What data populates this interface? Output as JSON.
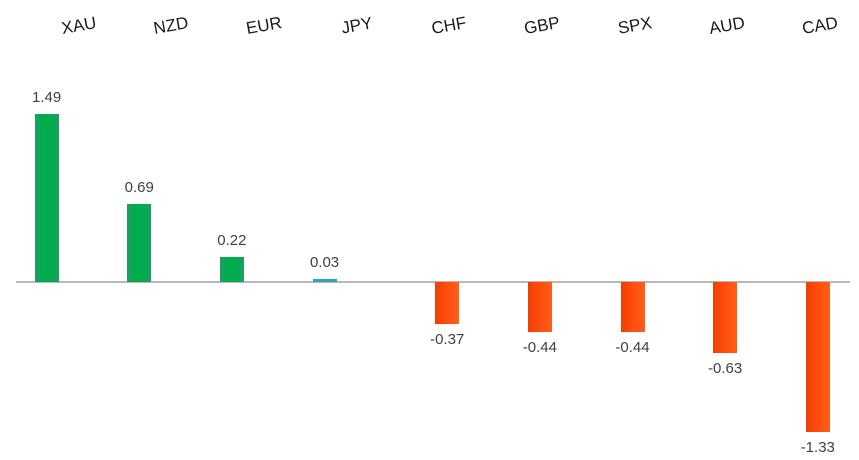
{
  "chart_data": {
    "type": "bar",
    "title": "",
    "xlabel": "",
    "ylabel": "",
    "categories": [
      "XAU",
      "NZD",
      "EUR",
      "JPY",
      "CHF",
      "GBP",
      "SPX",
      "AUD",
      "CAD"
    ],
    "values": [
      1.49,
      0.69,
      0.22,
      0.03,
      -0.37,
      -0.44,
      -0.44,
      -0.63,
      -1.33
    ],
    "data_labels": [
      "1.49",
      "0.69",
      "0.22",
      "0.03",
      "-0.37",
      "-0.44",
      "-0.44",
      "-0.63",
      "-1.33"
    ],
    "bar_palette_keys": [
      "green",
      "green",
      "green",
      "teal",
      "red",
      "red",
      "red",
      "red",
      "red"
    ],
    "ylim": [
      -1.5,
      1.6
    ],
    "grid": false,
    "legend_position": "none",
    "colors": {
      "green_edge": "#1e9e63",
      "green_mid": "#00ac4e",
      "teal_solid": "#38a1b5",
      "red_left": "#f13e04",
      "red_mid": "#fe4c0d",
      "red_right": "#ff5f1a",
      "axis_line": "#b9b9b9",
      "value_label_text": "#404040",
      "category_label_text": "#1a1a1a",
      "background": "#ffffff"
    }
  }
}
